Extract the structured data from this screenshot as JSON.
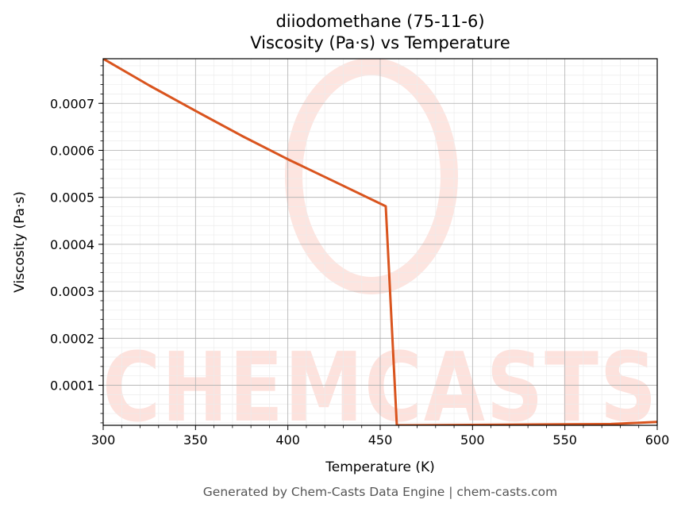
{
  "chart_data": {
    "type": "line",
    "title": "diiodomethane (75-11-6)",
    "subtitle": "Viscosity (Pa·s) vs Temperature",
    "xlabel": "Temperature (K)",
    "ylabel": "Viscosity (Pa·s)",
    "xlim": [
      300,
      600
    ],
    "ylim": [
      1.48e-05,
      0.000795
    ],
    "xticks": [
      300,
      350,
      400,
      450,
      500,
      550,
      600
    ],
    "xtick_labels": [
      "300",
      "350",
      "400",
      "450",
      "500",
      "550",
      "600"
    ],
    "yticks": [
      0.0001,
      0.0002,
      0.0003,
      0.0004,
      0.0005,
      0.0006,
      0.0007
    ],
    "ytick_labels": [
      "0.0001",
      "0.0002",
      "0.0003",
      "0.0004",
      "0.0005",
      "0.0006",
      "0.0007"
    ],
    "grid": true,
    "line_color": "#d9541e",
    "series": [
      {
        "x": [
          300,
          325,
          350,
          375,
          400,
          425,
          453,
          459,
          475,
          500,
          525,
          550,
          575,
          600
        ],
        "y": [
          0.000795,
          0.000738,
          0.000684,
          0.000631,
          0.000581,
          0.000534,
          0.000481,
          1.48e-05,
          1.51e-05,
          1.57e-05,
          1.63e-05,
          1.69e-05,
          1.75e-05,
          2.2e-05
        ]
      }
    ]
  },
  "watermark": {
    "text": "CHEMCASTS",
    "color": "#fde2dd"
  },
  "footer": "Generated by Chem-Casts Data Engine | chem-casts.com"
}
